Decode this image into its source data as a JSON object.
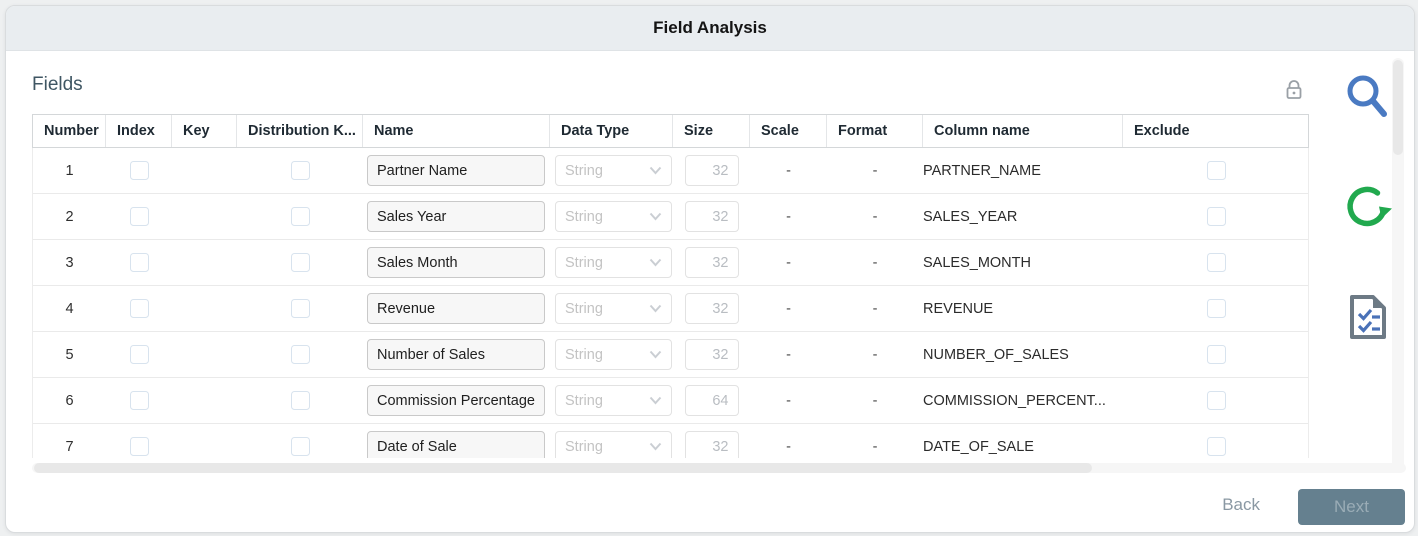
{
  "dialog": {
    "title": "Field Analysis",
    "section_title": "Fields",
    "back_label": "Back",
    "next_label": "Next"
  },
  "icons": {
    "lock": "lock-icon",
    "search": "search-icon",
    "refresh": "refresh-icon",
    "checklist": "checklist-document-icon",
    "chevron": "chevron-down-icon"
  },
  "colors": {
    "header_bg": "#e9edf0",
    "search_blue": "#4a7ac2",
    "refresh_green": "#21a94e",
    "doc_gray": "#6d7a85",
    "doc_marks_blue": "#4a72b8",
    "next_button_bg": "#65808f",
    "back_text": "#8a98a3",
    "fields_title": "#3f5663"
  },
  "table": {
    "columns": [
      "Number",
      "Index",
      "Key",
      "Distribution K...",
      "Name",
      "Data Type",
      "Size",
      "Scale",
      "Format",
      "Column name",
      "Exclude"
    ],
    "rows": [
      {
        "number": "1",
        "index_checked": false,
        "distribution_checked": false,
        "name": "Partner Name",
        "data_type": "String",
        "size": "32",
        "scale": "-",
        "format": "-",
        "column_name": "PARTNER_NAME",
        "exclude_checked": false
      },
      {
        "number": "2",
        "index_checked": false,
        "distribution_checked": false,
        "name": "Sales Year",
        "data_type": "String",
        "size": "32",
        "scale": "-",
        "format": "-",
        "column_name": "SALES_YEAR",
        "exclude_checked": false
      },
      {
        "number": "3",
        "index_checked": false,
        "distribution_checked": false,
        "name": "Sales Month",
        "data_type": "String",
        "size": "32",
        "scale": "-",
        "format": "-",
        "column_name": "SALES_MONTH",
        "exclude_checked": false
      },
      {
        "number": "4",
        "index_checked": false,
        "distribution_checked": false,
        "name": "Revenue",
        "data_type": "String",
        "size": "32",
        "scale": "-",
        "format": "-",
        "column_name": "REVENUE",
        "exclude_checked": false
      },
      {
        "number": "5",
        "index_checked": false,
        "distribution_checked": false,
        "name": "Number of Sales",
        "data_type": "String",
        "size": "32",
        "scale": "-",
        "format": "-",
        "column_name": "NUMBER_OF_SALES",
        "exclude_checked": false
      },
      {
        "number": "6",
        "index_checked": false,
        "distribution_checked": false,
        "name": "Commission Percentage",
        "data_type": "String",
        "size": "64",
        "scale": "-",
        "format": "-",
        "column_name": "COMMISSION_PERCENT...",
        "exclude_checked": false
      },
      {
        "number": "7",
        "index_checked": false,
        "distribution_checked": false,
        "name": "Date of Sale",
        "data_type": "String",
        "size": "32",
        "scale": "-",
        "format": "-",
        "column_name": "DATE_OF_SALE",
        "exclude_checked": false
      }
    ]
  }
}
